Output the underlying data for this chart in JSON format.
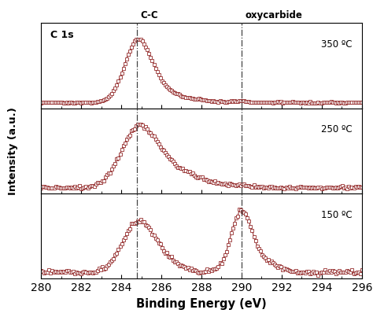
{
  "title": "C 1s",
  "xlabel": "Binding Energy (eV)",
  "ylabel": "Intensity (a.u.)",
  "xmin": 280,
  "xmax": 296,
  "vline1": 284.8,
  "vline2": 290.0,
  "vline1_label": "C-C",
  "vline2_label": "oxycarbide",
  "temperatures": [
    "350 ºC",
    "250 ºC",
    "150 ºC"
  ],
  "line_color": "#8B1A1A",
  "marker_facecolor": "#ffffff",
  "marker_edgecolor": "#8B1A1A",
  "bg_color": "#ffffff",
  "panel_bg": "#f5f5f5",
  "noise_scale_base": 0.006,
  "noise_scale_150": 0.01
}
